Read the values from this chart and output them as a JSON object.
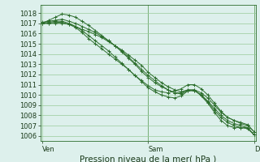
{
  "bg_color": "#ddf0ec",
  "grid_color": "#99cc99",
  "line_color": "#2d6e2d",
  "marker_color": "#2d6e2d",
  "ylim": [
    1005.5,
    1018.8
  ],
  "yticks": [
    1006,
    1007,
    1008,
    1009,
    1010,
    1011,
    1012,
    1013,
    1014,
    1015,
    1016,
    1017,
    1018
  ],
  "xtick_labels": [
    "Ven",
    "Sam",
    "Dim"
  ],
  "xtick_positions": [
    0,
    16,
    32
  ],
  "xlabel": "Pression niveau de la mer( hPa )",
  "xlabel_fontsize": 7.5,
  "tick_fontsize": 6.0,
  "n_points": 33,
  "lines": [
    [
      1017.0,
      1017.0,
      1017.0,
      1017.0,
      1016.9,
      1016.7,
      1016.4,
      1016.2,
      1015.9,
      1015.6,
      1015.2,
      1014.8,
      1014.4,
      1013.9,
      1013.4,
      1012.9,
      1012.2,
      1011.7,
      1011.2,
      1010.8,
      1010.5,
      1010.3,
      1010.5,
      1010.4,
      1010.0,
      1009.4,
      1008.7,
      1008.0,
      1007.5,
      1007.2,
      1007.0,
      1006.8,
      1006.1
    ],
    [
      1017.1,
      1017.2,
      1017.3,
      1017.4,
      1017.2,
      1017.0,
      1016.7,
      1016.4,
      1016.1,
      1015.7,
      1015.3,
      1014.8,
      1014.3,
      1013.7,
      1013.1,
      1012.5,
      1011.9,
      1011.4,
      1010.9,
      1010.5,
      1010.2,
      1010.1,
      1010.4,
      1010.4,
      1010.0,
      1009.3,
      1008.5,
      1007.8,
      1007.3,
      1007.0,
      1006.8,
      1006.7,
      1006.1
    ],
    [
      1017.0,
      1017.3,
      1017.6,
      1017.9,
      1017.8,
      1017.6,
      1017.2,
      1016.8,
      1016.3,
      1015.8,
      1015.3,
      1014.8,
      1014.2,
      1013.6,
      1013.0,
      1012.3,
      1011.7,
      1011.2,
      1010.8,
      1010.5,
      1010.2,
      1010.2,
      1010.5,
      1010.5,
      1009.9,
      1009.2,
      1008.3,
      1007.5,
      1007.0,
      1006.8,
      1006.8,
      1006.8,
      1006.1
    ],
    [
      1017.0,
      1017.1,
      1017.2,
      1017.2,
      1017.0,
      1016.7,
      1016.3,
      1015.8,
      1015.3,
      1014.8,
      1014.3,
      1013.7,
      1013.1,
      1012.5,
      1011.9,
      1011.3,
      1010.7,
      1010.3,
      1010.0,
      1009.8,
      1009.7,
      1009.9,
      1010.4,
      1010.5,
      1010.2,
      1009.7,
      1009.0,
      1008.3,
      1007.8,
      1007.5,
      1007.2,
      1007.0,
      1006.4
    ],
    [
      1017.0,
      1017.0,
      1017.1,
      1017.1,
      1016.9,
      1016.6,
      1016.1,
      1015.5,
      1015.0,
      1014.5,
      1014.0,
      1013.5,
      1013.0,
      1012.5,
      1011.9,
      1011.4,
      1010.9,
      1010.5,
      1010.3,
      1010.2,
      1010.4,
      1010.6,
      1011.0,
      1011.0,
      1010.6,
      1010.0,
      1009.2,
      1008.4,
      1007.8,
      1007.5,
      1007.3,
      1007.1,
      1006.4
    ]
  ]
}
